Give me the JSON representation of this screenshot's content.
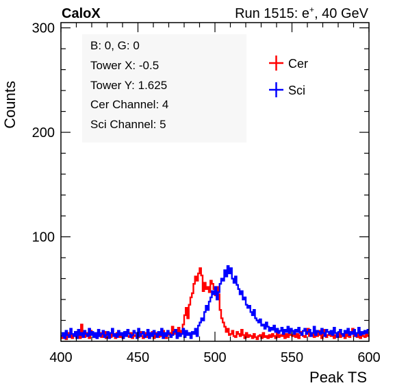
{
  "header": {
    "left_label": "CaloX",
    "right_label_prefix": "Run 1515: e",
    "right_label_sup": "+",
    "right_label_suffix": ", 40 GeV"
  },
  "info_box": [
    "B: 0, G: 0",
    "Tower X: -0.5",
    "Tower Y: 1.625",
    "Cer Channel: 4",
    "Sci Channel: 5"
  ],
  "chart_data": {
    "type": "line",
    "title": "",
    "xlabel": "Peak TS",
    "ylabel": "Counts",
    "xlim": [
      400,
      600
    ],
    "ylim": [
      0,
      305
    ],
    "x_ticks": [
      400,
      450,
      500,
      550,
      600
    ],
    "y_ticks": [
      100,
      200,
      300
    ],
    "legend_position": "top-right",
    "bin_width": 1,
    "series": [
      {
        "name": "Cer",
        "color": "#ff0000",
        "x": [
          400,
          401,
          402,
          403,
          404,
          405,
          406,
          407,
          408,
          409,
          410,
          411,
          412,
          413,
          414,
          415,
          416,
          417,
          418,
          419,
          420,
          421,
          422,
          423,
          424,
          425,
          426,
          427,
          428,
          429,
          430,
          431,
          432,
          433,
          434,
          435,
          436,
          437,
          438,
          439,
          440,
          441,
          442,
          443,
          444,
          445,
          446,
          447,
          448,
          449,
          450,
          451,
          452,
          453,
          454,
          455,
          456,
          457,
          458,
          459,
          460,
          461,
          462,
          463,
          464,
          465,
          466,
          467,
          468,
          469,
          470,
          471,
          472,
          473,
          474,
          475,
          476,
          477,
          478,
          479,
          480,
          481,
          482,
          483,
          484,
          485,
          486,
          487,
          488,
          489,
          490,
          491,
          492,
          493,
          494,
          495,
          496,
          497,
          498,
          499,
          500,
          501,
          502,
          503,
          504,
          505,
          506,
          507,
          508,
          509,
          510,
          511,
          512,
          513,
          514,
          515,
          516,
          517,
          518,
          519,
          520,
          521,
          522,
          523,
          524,
          525,
          526,
          527,
          528,
          529,
          530,
          531,
          532,
          533,
          534,
          535,
          536,
          537,
          538,
          539,
          540,
          541,
          542,
          543,
          544,
          545,
          546,
          547,
          548,
          549,
          550,
          551,
          552,
          553,
          554,
          555,
          556,
          557,
          558,
          559,
          560,
          561,
          562,
          563,
          564,
          565,
          566,
          567,
          568,
          569,
          570,
          571,
          572,
          573,
          574,
          575,
          576,
          577,
          578,
          579,
          580,
          581,
          582,
          583,
          584,
          585,
          586,
          587,
          588,
          589,
          590,
          591,
          592,
          593,
          594,
          595,
          596,
          597,
          598,
          599
        ],
        "values": [
          3,
          7,
          5,
          2,
          8,
          4,
          6,
          3,
          5,
          9,
          4,
          6,
          3,
          16,
          7,
          4,
          8,
          5,
          3,
          10,
          6,
          4,
          7,
          3,
          5,
          8,
          4,
          6,
          9,
          3,
          5,
          7,
          4,
          10,
          6,
          3,
          8,
          5,
          4,
          7,
          3,
          6,
          9,
          5,
          4,
          8,
          3,
          6,
          5,
          7,
          4,
          9,
          5,
          3,
          8,
          6,
          4,
          7,
          5,
          9,
          3,
          6,
          8,
          4,
          7,
          5,
          10,
          4,
          3,
          6,
          8,
          5,
          14,
          7,
          11,
          9,
          13,
          6,
          10,
          16,
          25,
          32,
          22,
          35,
          42,
          46,
          55,
          62,
          58,
          65,
          70,
          63,
          48,
          56,
          50,
          52,
          47,
          58,
          55,
          50,
          44,
          52,
          45,
          30,
          22,
          18,
          14,
          9,
          12,
          6,
          7,
          10,
          5,
          4,
          9,
          7,
          5,
          11,
          6,
          3,
          8,
          4,
          6,
          5,
          3,
          7,
          4,
          2,
          5,
          6,
          3,
          8,
          4,
          5,
          3,
          6,
          4,
          7,
          5,
          3,
          8,
          4,
          6,
          5,
          9,
          3,
          7,
          4,
          10,
          6,
          5,
          8,
          4,
          7,
          3,
          6,
          9,
          5,
          4,
          7,
          12,
          5,
          6,
          8,
          4,
          7,
          5,
          10,
          6,
          3,
          11,
          8,
          4,
          6,
          7,
          5,
          9,
          3,
          6,
          5,
          8,
          4,
          7,
          6,
          3,
          9,
          5,
          4,
          7,
          12,
          5,
          6,
          4,
          8,
          3,
          7,
          5,
          4,
          9,
          5
        ]
      },
      {
        "name": "Sci",
        "color": "#0000ff",
        "x": [
          400,
          401,
          402,
          403,
          404,
          405,
          406,
          407,
          408,
          409,
          410,
          411,
          412,
          413,
          414,
          415,
          416,
          417,
          418,
          419,
          420,
          421,
          422,
          423,
          424,
          425,
          426,
          427,
          428,
          429,
          430,
          431,
          432,
          433,
          434,
          435,
          436,
          437,
          438,
          439,
          440,
          441,
          442,
          443,
          444,
          445,
          446,
          447,
          448,
          449,
          450,
          451,
          452,
          453,
          454,
          455,
          456,
          457,
          458,
          459,
          460,
          461,
          462,
          463,
          464,
          465,
          466,
          467,
          468,
          469,
          470,
          471,
          472,
          473,
          474,
          475,
          476,
          477,
          478,
          479,
          480,
          481,
          482,
          483,
          484,
          485,
          486,
          487,
          488,
          489,
          490,
          491,
          492,
          493,
          494,
          495,
          496,
          497,
          498,
          499,
          500,
          501,
          502,
          503,
          504,
          505,
          506,
          507,
          508,
          509,
          510,
          511,
          512,
          513,
          514,
          515,
          516,
          517,
          518,
          519,
          520,
          521,
          522,
          523,
          524,
          525,
          526,
          527,
          528,
          529,
          530,
          531,
          532,
          533,
          534,
          535,
          536,
          537,
          538,
          539,
          540,
          541,
          542,
          543,
          544,
          545,
          546,
          547,
          548,
          549,
          550,
          551,
          552,
          553,
          554,
          555,
          556,
          557,
          558,
          559,
          560,
          561,
          562,
          563,
          564,
          565,
          566,
          567,
          568,
          569,
          570,
          571,
          572,
          573,
          574,
          575,
          576,
          577,
          578,
          579,
          580,
          581,
          582,
          583,
          584,
          585,
          586,
          587,
          588,
          589,
          590,
          591,
          592,
          593,
          594,
          595,
          596,
          597,
          598,
          599
        ],
        "values": [
          5,
          8,
          3,
          10,
          6,
          4,
          12,
          7,
          5,
          9,
          3,
          11,
          6,
          8,
          4,
          10,
          7,
          5,
          12,
          6,
          9,
          4,
          8,
          3,
          11,
          5,
          7,
          10,
          4,
          6,
          9,
          3,
          8,
          12,
          5,
          7,
          4,
          10,
          6,
          8,
          3,
          9,
          5,
          11,
          7,
          4,
          6,
          10,
          8,
          3,
          12,
          5,
          7,
          9,
          4,
          6,
          11,
          3,
          8,
          5,
          10,
          7,
          4,
          9,
          6,
          12,
          3,
          8,
          5,
          10,
          7,
          4,
          6,
          9,
          11,
          3,
          8,
          5,
          7,
          12,
          4,
          10,
          6,
          8,
          3,
          9,
          7,
          12,
          5,
          15,
          18,
          22,
          20,
          28,
          34,
          30,
          38,
          42,
          48,
          45,
          52,
          40,
          47,
          55,
          60,
          58,
          68,
          62,
          72,
          65,
          70,
          60,
          56,
          62,
          54,
          50,
          45,
          48,
          40,
          42,
          35,
          32,
          34,
          28,
          25,
          30,
          22,
          20,
          18,
          21,
          15,
          16,
          12,
          18,
          14,
          10,
          13,
          11,
          15,
          9,
          12,
          8,
          10,
          13,
          7,
          11,
          9,
          14,
          8,
          12,
          10,
          7,
          11,
          9,
          13,
          8,
          6,
          10,
          12,
          7,
          9,
          11,
          5,
          8,
          14,
          6,
          10,
          9,
          7,
          12,
          8,
          5,
          11,
          9,
          7,
          10,
          6,
          13,
          8,
          4,
          9,
          11,
          7,
          5,
          10,
          8,
          12,
          6,
          9,
          7,
          11,
          5,
          8,
          13,
          6,
          9,
          7,
          10,
          8,
          11
        ]
      }
    ]
  }
}
